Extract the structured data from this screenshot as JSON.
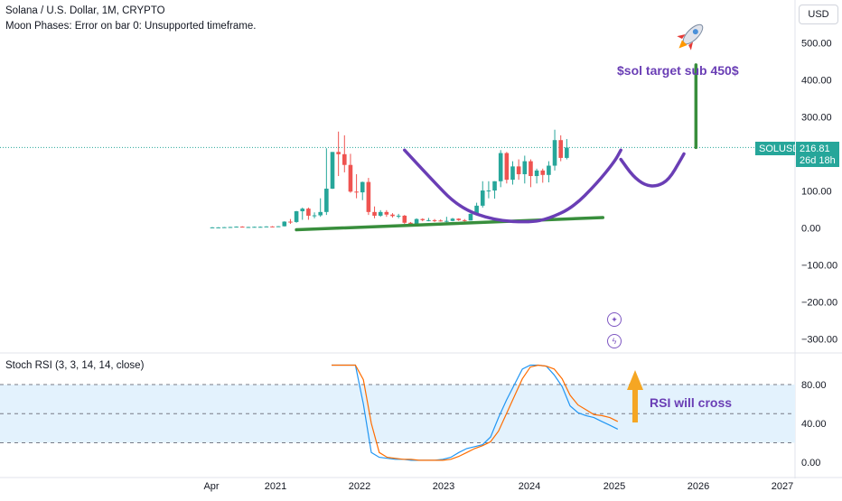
{
  "header": {
    "title": "Solana / U.S. Dollar, 1M, CRYPTO",
    "subtitle": "Moon Phases: Error on bar 0: Unsupported timeframe.",
    "currency": "USD"
  },
  "price_axis": {
    "labels": [
      "500.00",
      "400.00",
      "300.00",
      "200.00",
      "100.00",
      "0.00",
      "−100.00",
      "−200.00",
      "−300.00"
    ]
  },
  "price_tag": {
    "symbol": "SOLUSD",
    "price": "216.81",
    "countdown": "26d 18h",
    "color": "#26a69a"
  },
  "time_axis": {
    "labels": [
      "Apr",
      "2021",
      "2022",
      "2023",
      "2024",
      "2025",
      "2026",
      "2027"
    ]
  },
  "annotations": {
    "target_text": "$sol target sub 450$",
    "rsi_text": "RSI will cross",
    "rocket_icon": "rocket-icon",
    "colors": {
      "purple": "#6a3eb5",
      "green": "#388e3c",
      "arrow": "#f5a623"
    }
  },
  "indicator": {
    "title": "Stoch RSI (3, 3, 14, 14, close)",
    "axis_labels": [
      "80.00",
      "40.00",
      "0.00"
    ],
    "colors": {
      "k": "#2196f3",
      "d": "#ff6d00",
      "band": "#e3f2fd"
    }
  },
  "chart_data": [
    {
      "type": "candlestick",
      "title": "Solana / U.S. Dollar, 1M, CRYPTO",
      "ylim": [
        -330,
        560
      ],
      "candles": [
        {
          "o": 1.5,
          "h": 2,
          "l": 1,
          "c": 1.5
        },
        {
          "o": 1.5,
          "h": 2,
          "l": 1,
          "c": 1.5
        },
        {
          "o": 1.5,
          "h": 2.5,
          "l": 1,
          "c": 2
        },
        {
          "o": 2,
          "h": 3,
          "l": 1.5,
          "c": 2.5
        },
        {
          "o": 2.5,
          "h": 4,
          "l": 2,
          "c": 3.5
        },
        {
          "o": 3.5,
          "h": 4.5,
          "l": 1.5,
          "c": 2
        },
        {
          "o": 2,
          "h": 3,
          "l": 1.5,
          "c": 2.5
        },
        {
          "o": 2.5,
          "h": 3.5,
          "l": 2,
          "c": 3
        },
        {
          "o": 3,
          "h": 4,
          "l": 2,
          "c": 3
        },
        {
          "o": 3,
          "h": 4.5,
          "l": 2.5,
          "c": 4
        },
        {
          "o": 4,
          "h": 5,
          "l": 2,
          "c": 3
        },
        {
          "o": 3,
          "h": 5,
          "l": 3,
          "c": 4.5
        },
        {
          "o": 4.5,
          "h": 18,
          "l": 4,
          "c": 17
        },
        {
          "o": 17,
          "h": 24,
          "l": 11,
          "c": 16
        },
        {
          "o": 16,
          "h": 46,
          "l": 14,
          "c": 45
        },
        {
          "o": 45,
          "h": 55,
          "l": 22,
          "c": 52
        },
        {
          "o": 52,
          "h": 55,
          "l": 22,
          "c": 33
        },
        {
          "o": 33,
          "h": 42,
          "l": 26,
          "c": 34
        },
        {
          "o": 34,
          "h": 80,
          "l": 30,
          "c": 43
        },
        {
          "o": 43,
          "h": 215,
          "l": 35,
          "c": 106
        },
        {
          "o": 106,
          "h": 205,
          "l": 105,
          "c": 205
        },
        {
          "o": 205,
          "h": 260,
          "l": 140,
          "c": 199
        },
        {
          "o": 199,
          "h": 250,
          "l": 150,
          "c": 170
        },
        {
          "o": 170,
          "h": 200,
          "l": 95,
          "c": 98
        },
        {
          "o": 98,
          "h": 145,
          "l": 80,
          "c": 96
        },
        {
          "o": 96,
          "h": 125,
          "l": 75,
          "c": 124
        },
        {
          "o": 124,
          "h": 135,
          "l": 35,
          "c": 43
        },
        {
          "o": 43,
          "h": 58,
          "l": 26,
          "c": 33
        },
        {
          "o": 33,
          "h": 48,
          "l": 30,
          "c": 43
        },
        {
          "o": 43,
          "h": 48,
          "l": 30,
          "c": 36
        },
        {
          "o": 36,
          "h": 40,
          "l": 28,
          "c": 32
        },
        {
          "o": 32,
          "h": 38,
          "l": 26,
          "c": 33
        },
        {
          "o": 33,
          "h": 35,
          "l": 11,
          "c": 14
        },
        {
          "o": 14,
          "h": 16,
          "l": 8,
          "c": 10
        },
        {
          "o": 10,
          "h": 26,
          "l": 8,
          "c": 24
        },
        {
          "o": 24,
          "h": 26,
          "l": 18,
          "c": 21
        },
        {
          "o": 21,
          "h": 27,
          "l": 18,
          "c": 21
        },
        {
          "o": 21,
          "h": 24,
          "l": 16,
          "c": 20
        },
        {
          "o": 20,
          "h": 23,
          "l": 17,
          "c": 18
        },
        {
          "o": 18,
          "h": 30,
          "l": 15,
          "c": 19
        },
        {
          "o": 19,
          "h": 27,
          "l": 18,
          "c": 25
        },
        {
          "o": 25,
          "h": 26,
          "l": 19,
          "c": 21
        },
        {
          "o": 21,
          "h": 24,
          "l": 17,
          "c": 20
        },
        {
          "o": 20,
          "h": 39,
          "l": 20,
          "c": 38
        },
        {
          "o": 38,
          "h": 68,
          "l": 38,
          "c": 60
        },
        {
          "o": 60,
          "h": 126,
          "l": 55,
          "c": 101
        },
        {
          "o": 101,
          "h": 126,
          "l": 80,
          "c": 101
        },
        {
          "o": 101,
          "h": 126,
          "l": 79,
          "c": 126
        },
        {
          "o": 126,
          "h": 210,
          "l": 110,
          "c": 202
        },
        {
          "o": 202,
          "h": 205,
          "l": 120,
          "c": 130
        },
        {
          "o": 130,
          "h": 180,
          "l": 117,
          "c": 166
        },
        {
          "o": 166,
          "h": 185,
          "l": 130,
          "c": 145
        },
        {
          "o": 145,
          "h": 195,
          "l": 120,
          "c": 180
        },
        {
          "o": 180,
          "h": 185,
          "l": 110,
          "c": 140
        },
        {
          "o": 140,
          "h": 160,
          "l": 120,
          "c": 155
        },
        {
          "o": 155,
          "h": 160,
          "l": 122,
          "c": 143
        },
        {
          "o": 143,
          "h": 180,
          "l": 123,
          "c": 168
        },
        {
          "o": 168,
          "h": 265,
          "l": 155,
          "c": 237
        },
        {
          "o": 237,
          "h": 250,
          "l": 180,
          "c": 189
        },
        {
          "o": 189,
          "h": 240,
          "l": 185,
          "c": 217
        }
      ],
      "overlays": [
        {
          "kind": "support-line",
          "color": "#388e3c",
          "from": [
            14,
            -5
          ],
          "to": [
            65,
            28
          ]
        },
        {
          "kind": "cup-curve",
          "color": "#6a3eb5",
          "points": [
            [
              32,
              210
            ],
            [
              36,
              140
            ],
            [
              41,
              55
            ],
            [
              47,
              20
            ],
            [
              53,
              15
            ],
            [
              56,
              25
            ],
            [
              60,
              55
            ],
            [
              64,
              120
            ],
            [
              67,
              180
            ],
            [
              68,
              210
            ]
          ]
        },
        {
          "kind": "cup-handle",
          "color": "#6a3eb5",
          "points": [
            [
              68,
              185
            ],
            [
              70,
              140
            ],
            [
              72,
              115
            ],
            [
              74,
              112
            ],
            [
              76,
              130
            ],
            [
              78,
              185
            ],
            [
              78.5,
              200
            ]
          ]
        },
        {
          "kind": "target-line",
          "color": "#388e3c",
          "from": [
            80.5,
            217
          ],
          "to": [
            80.5,
            440
          ]
        }
      ]
    },
    {
      "type": "line",
      "title": "Stoch RSI (3, 3, 14, 14, close)",
      "ylim": [
        -8,
        108
      ],
      "series": [
        {
          "values": [
            100,
            100,
            100,
            100,
            60,
            10,
            5,
            4,
            3,
            3,
            2,
            2,
            2,
            2,
            3,
            5,
            10,
            14,
            16,
            18,
            26,
            46,
            64,
            80,
            96,
            100,
            100,
            99,
            90,
            78,
            58,
            51,
            48,
            46,
            42,
            38,
            34
          ]
        },
        {
          "values": [
            100,
            100,
            100,
            100,
            85,
            40,
            10,
            5,
            4,
            3,
            3,
            2,
            2,
            2,
            2,
            3,
            6,
            10,
            14,
            17,
            21,
            32,
            50,
            68,
            86,
            98,
            100,
            99,
            96,
            86,
            69,
            59,
            54,
            49,
            48,
            46,
            42
          ]
        }
      ]
    }
  ]
}
